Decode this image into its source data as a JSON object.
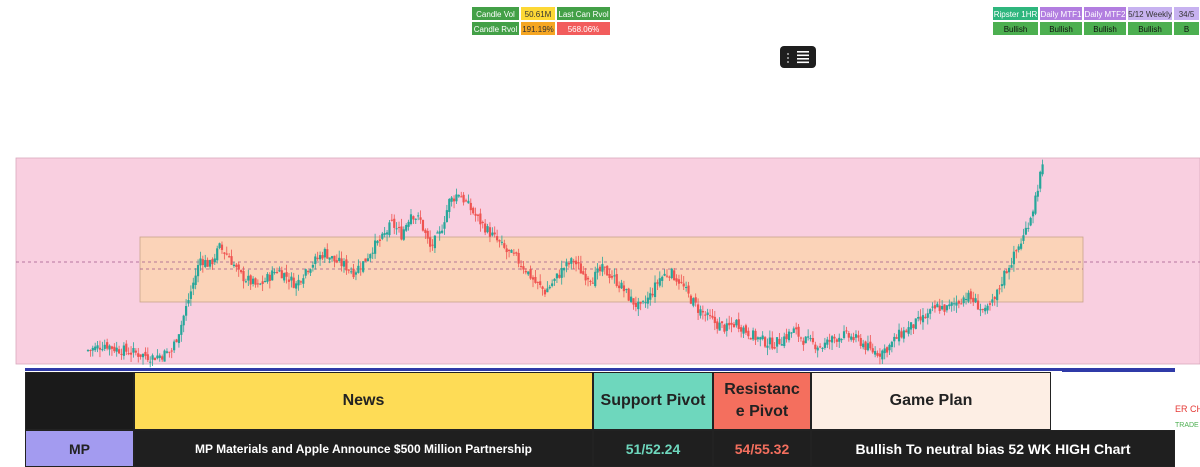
{
  "stats_left": {
    "row1": [
      {
        "label": "Candle Vol",
        "color": "green"
      },
      {
        "label": "50.61M",
        "color": "yellow"
      },
      {
        "label": "Last Can Rvol",
        "color": "green"
      },
      {
        "label": "",
        "color": "green"
      }
    ],
    "row2": [
      {
        "label": "Candle Rvol",
        "color": "green"
      },
      {
        "label": "191.19%",
        "color": "orange"
      },
      {
        "label": "568.06%",
        "color": "red"
      }
    ]
  },
  "stats_right": {
    "row1": [
      "Ripster 1HR",
      "Daily MTF1",
      "Daily MTF2",
      "5/12 Weekly",
      "34/5"
    ],
    "row2": [
      "Bullish",
      "Bullish",
      "Bullish",
      "Bullish",
      "B"
    ]
  },
  "table": {
    "headers": {
      "news": "News",
      "support": "Support Pivot",
      "resistance": "Resistanc e Pivot",
      "game_plan": "Game Plan"
    },
    "row": {
      "ticker": "MP",
      "news": "MP Materials and Apple Announce $500 Million Partnership",
      "support": "51/52.24",
      "resistance": "54/55.32",
      "game_plan": "Bullish To neutral bias 52 WK HIGH Chart"
    },
    "overflow_1": "ER CH",
    "overflow_2": "TRADE"
  },
  "colors": {
    "up_candle": "#26a69a",
    "down_candle": "#ef5350",
    "pink_zone": "#f9cfe0",
    "orange_zone": "#fbd3b8"
  },
  "chart_data": {
    "type": "candlestick",
    "close_path": [
      52.3,
      52.4,
      52.6,
      52.4,
      52.3,
      52.2,
      52.1,
      52.0,
      52.1,
      52.3,
      53.5,
      55.0,
      56.5,
      56.2,
      57.0,
      56.6,
      55.8,
      55.5,
      55.2,
      55.6,
      56.0,
      55.7,
      55.3,
      56.0,
      56.4,
      56.8,
      56.4,
      56.2,
      55.9,
      56.3,
      57.0,
      57.4,
      58.1,
      57.6,
      58.6,
      58.2,
      57.0,
      57.6,
      59.1,
      59.5,
      58.9,
      58.3,
      57.8,
      57.3,
      56.8,
      56.5,
      56.0,
      55.4,
      55.0,
      55.5,
      56.1,
      56.4,
      55.8,
      55.6,
      56.0,
      55.7,
      55.2,
      54.6,
      54.2,
      54.8,
      55.6,
      55.9,
      55.5,
      54.8,
      54.2,
      53.8,
      53.5,
      53.3,
      53.6,
      53.2,
      52.9,
      52.7,
      52.6,
      52.9,
      53.2,
      52.8,
      52.6,
      52.5,
      52.8,
      53.0,
      52.9,
      52.7,
      52.3,
      52.2,
      52.5,
      53.0,
      53.3,
      53.6,
      53.9,
      54.3,
      54.2,
      54.5,
      54.8,
      54.5,
      54.0,
      54.6,
      55.8,
      56.6,
      57.5,
      58.8,
      60.8
    ]
  }
}
